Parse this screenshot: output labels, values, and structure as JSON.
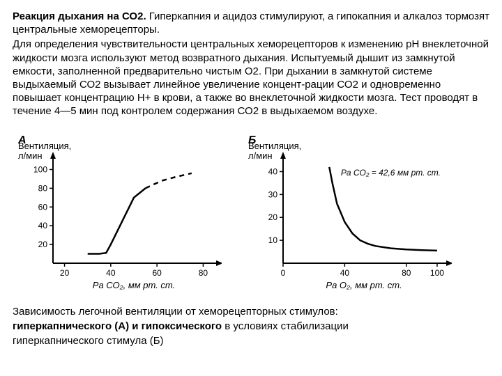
{
  "intro": {
    "title": "Реакция дыхания на СО2.",
    "p1": " Гиперкапния и ацидоз стимулируют, а гипокапния и алкалоз тормозят центральные хеморецепторы.",
    "p2": "Для определения чувствительности центральных хеморецепторов к изменению рН внеклеточной жидкости мозга используют метод возвратного дыхания. Испытуемый дышит из замкнутой емкости, заполненной предварительно чистым О2. При дыхании в замкнутой системе выдыхаемый СО2 вызывает линейное увеличение концент-рации СО2 и одновременно повышает концентрацию Н+ в крови, а также во внеклеточной жидкости мозга. Тест проводят в течение 4—5 мин под контролем содержания СО2 в выдыхаемом воздухе."
  },
  "caption": {
    "line1a": "Зависимость легочной вентиляции от хеморецепторных стимулов:",
    "line2bold": "гиперкапнического (А) и гипоксического",
    "line2rest": " в условиях стабилизации",
    "line3": "гиперкапнического стимула (Б)"
  },
  "chartA": {
    "type": "line",
    "panel_label": "А",
    "y_label": "Вентиляция,",
    "y_label2": "л/мин",
    "x_label": "Ра СО₂, мм рт. ст.",
    "x_ticks": [
      20,
      40,
      60,
      80
    ],
    "y_ticks": [
      20,
      40,
      60,
      80,
      100
    ],
    "xlim": [
      15,
      85
    ],
    "ylim": [
      0,
      110
    ],
    "line_color": "#000000",
    "line_width": 2.5,
    "solid_points": [
      [
        30,
        10
      ],
      [
        35,
        10
      ],
      [
        38,
        11
      ],
      [
        40,
        20
      ],
      [
        45,
        45
      ],
      [
        50,
        70
      ],
      [
        55,
        80
      ]
    ],
    "dashed_points": [
      [
        55,
        80
      ],
      [
        62,
        88
      ],
      [
        68,
        92
      ],
      [
        75,
        96
      ]
    ],
    "background": "#ffffff",
    "axis_color": "#000000",
    "tick_font_size": 12,
    "label_font_size": 13
  },
  "chartB": {
    "type": "line",
    "panel_label": "Б",
    "y_label": "Вентиляция,",
    "y_label2": "л/мин",
    "x_label": "Ра О₂, мм рт. ст.",
    "annotation": "Ра CO₂ = 42,6 мм рт. ст.",
    "x_ticks": [
      0,
      40,
      80,
      100
    ],
    "y_ticks": [
      10,
      20,
      30,
      40
    ],
    "xlim": [
      0,
      105
    ],
    "ylim": [
      0,
      45
    ],
    "line_color": "#000000",
    "line_width": 2.5,
    "points": [
      [
        30,
        42
      ],
      [
        32,
        35
      ],
      [
        35,
        26
      ],
      [
        40,
        18
      ],
      [
        45,
        13
      ],
      [
        50,
        10
      ],
      [
        55,
        8.5
      ],
      [
        60,
        7.5
      ],
      [
        70,
        6.5
      ],
      [
        80,
        6
      ],
      [
        90,
        5.7
      ],
      [
        100,
        5.5
      ]
    ],
    "background": "#ffffff",
    "axis_color": "#000000",
    "tick_font_size": 12,
    "label_font_size": 13
  }
}
